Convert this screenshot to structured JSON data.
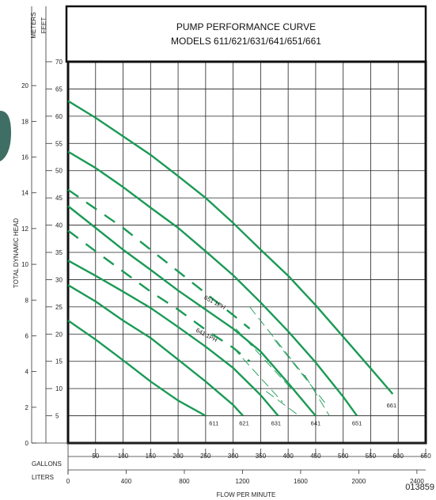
{
  "chart_data": {
    "type": "line",
    "title": "PUMP PERFORMANCE CURVE",
    "subtitle": "MODELS 611/621/631/641/651/661",
    "ylabel": "TOTAL DYNAMIC HEAD",
    "xlabel": "FLOW PER MINUTE",
    "left_axis_units": [
      "METERS",
      "FEET"
    ],
    "bottom_axis_units": [
      "GALLONS",
      "LITERS"
    ],
    "catalog_number": "013859",
    "xlim": [
      0,
      650
    ],
    "ylim_feet": [
      0,
      70
    ],
    "ylim_meters": [
      0,
      21.336
    ],
    "grid": true,
    "x_ticks_gallons": [
      50,
      100,
      150,
      200,
      250,
      300,
      350,
      400,
      450,
      500,
      550,
      600,
      650
    ],
    "x_ticks_liters": [
      0,
      400,
      800,
      1200,
      1600,
      2000,
      2400
    ],
    "y_ticks_feet": [
      5,
      10,
      15,
      20,
      25,
      30,
      35,
      40,
      45,
      50,
      55,
      60,
      65,
      70
    ],
    "y_ticks_meters": [
      0,
      2,
      4,
      6,
      8,
      10,
      12,
      14,
      16,
      18,
      20
    ],
    "curve_color": "#1a9a55",
    "series": [
      {
        "name": "611",
        "style": "solid",
        "x": [
          0,
          50,
          100,
          150,
          200,
          250
        ],
        "y": [
          22.5,
          19.0,
          15.2,
          11.3,
          7.8,
          5.0
        ]
      },
      {
        "name": "621",
        "style": "solid",
        "x": [
          0,
          50,
          100,
          150,
          200,
          250,
          300,
          318
        ],
        "y": [
          29,
          26,
          22.5,
          19.3,
          15.3,
          11.3,
          7.0,
          5.0
        ]
      },
      {
        "name": "631",
        "style": "solid",
        "x": [
          0,
          50,
          100,
          150,
          200,
          250,
          300,
          350,
          382
        ],
        "y": [
          33.5,
          30.7,
          27.8,
          24.8,
          21.3,
          17.7,
          13.8,
          8.8,
          5.0
        ]
      },
      {
        "name": "641",
        "style": "solid",
        "x": [
          0,
          50,
          100,
          150,
          200,
          250,
          300,
          350,
          400,
          450
        ],
        "y": [
          43.5,
          39.5,
          35.5,
          31.8,
          28.0,
          24.5,
          21.0,
          16.8,
          11.0,
          5.0
        ]
      },
      {
        "name": "651",
        "style": "solid",
        "x": [
          0,
          50,
          100,
          150,
          200,
          250,
          300,
          350,
          400,
          450,
          500,
          525
        ],
        "y": [
          53.5,
          50.5,
          47.0,
          43.2,
          39.5,
          35.2,
          30.8,
          25.8,
          20.5,
          14.8,
          8.5,
          5.0
        ]
      },
      {
        "name": "661",
        "style": "solid",
        "x": [
          0,
          50,
          100,
          150,
          200,
          250,
          300,
          350,
          400,
          450,
          500,
          550,
          590
        ],
        "y": [
          62.8,
          59.7,
          56.3,
          52.9,
          49.0,
          45.0,
          40.4,
          35.5,
          30.7,
          25.3,
          19.5,
          13.7,
          9.0
        ]
      },
      {
        "name": "641 1PH",
        "style": "dashed",
        "x": [
          0,
          50,
          100,
          150,
          200,
          250,
          300,
          330
        ],
        "y": [
          39,
          35.2,
          31.5,
          27.8,
          24.5,
          20.8,
          17.5,
          15.0
        ]
      },
      {
        "name": "651 1PH",
        "style": "dashed",
        "x": [
          0,
          50,
          100,
          150,
          200,
          250,
          300,
          330
        ],
        "y": [
          46.5,
          43.0,
          39.5,
          35.5,
          31.5,
          27.5,
          23.5,
          21.0
        ]
      }
    ],
    "hatched_segments": [
      {
        "x": [
          300,
          390
        ],
        "y": [
          17.5,
          7.5
        ]
      },
      {
        "x": [
          305,
          410
        ],
        "y": [
          21.0,
          9.5
        ]
      },
      {
        "x": [
          330,
          440
        ],
        "y": [
          25.0,
          11.0
        ]
      },
      {
        "x": [
          375,
          470
        ],
        "y": [
          19.0,
          7.0
        ]
      },
      {
        "x": [
          360,
          420
        ],
        "y": [
          9.5,
          5.0
        ]
      },
      {
        "x": [
          430,
          475
        ],
        "y": [
          12.5,
          5.0
        ]
      }
    ],
    "curve_labels": [
      {
        "text": "611",
        "x": 265,
        "y": 3.3
      },
      {
        "text": "621",
        "x": 320,
        "y": 3.3
      },
      {
        "text": "631",
        "x": 378,
        "y": 3.3
      },
      {
        "text": "641",
        "x": 450,
        "y": 3.3
      },
      {
        "text": "651",
        "x": 525,
        "y": 3.3
      },
      {
        "text": "661",
        "x": 588,
        "y": 6.5
      },
      {
        "text": "651 1PH",
        "x": 265,
        "y": 25.5,
        "rotate": 28
      },
      {
        "text": "641 1PH",
        "x": 250,
        "y": 19.5,
        "rotate": 28
      }
    ]
  }
}
